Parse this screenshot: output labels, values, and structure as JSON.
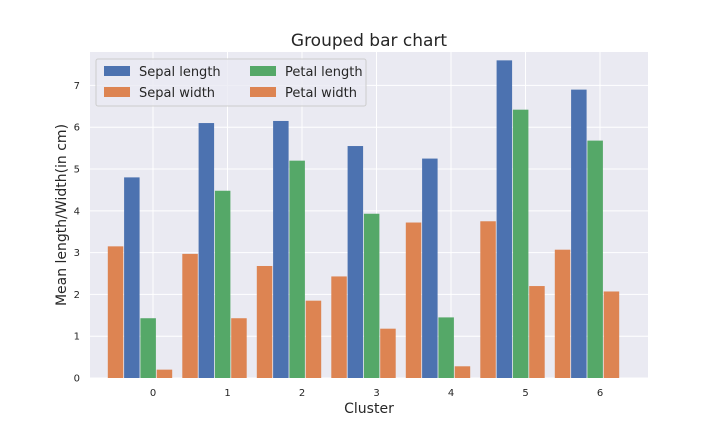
{
  "chart_data": {
    "type": "bar",
    "title": "Grouped bar chart",
    "xlabel": "Cluster",
    "ylabel": "Mean length/Width(in cm)",
    "categories": [
      "0",
      "1",
      "2",
      "3",
      "4",
      "5",
      "6"
    ],
    "ylim": [
      0,
      7.8
    ],
    "yticks": [
      0,
      1,
      2,
      3,
      4,
      5,
      6,
      7
    ],
    "grid": true,
    "legend_position": "top-left",
    "legend_columns": 2,
    "series": [
      {
        "name": "Sepal length",
        "color": "#4c72b0",
        "values": [
          4.8,
          6.1,
          6.15,
          5.55,
          5.25,
          7.6,
          6.9
        ]
      },
      {
        "name": "Sepal width",
        "color": "#dd8452",
        "values": [
          3.15,
          2.97,
          2.68,
          2.43,
          3.72,
          3.75,
          3.07
        ]
      },
      {
        "name": "Petal length",
        "color": "#55a868",
        "values": [
          1.43,
          4.48,
          5.2,
          3.93,
          1.45,
          6.42,
          5.68
        ]
      },
      {
        "name": "Petal width",
        "color": "#dd8452",
        "values": [
          0.2,
          1.43,
          1.85,
          1.18,
          0.28,
          2.2,
          2.07
        ]
      }
    ],
    "bar_order": [
      "Sepal width",
      "Sepal length",
      "Petal length",
      "Petal width"
    ]
  },
  "colors": {
    "plot_background": "#eaeaf2",
    "grid": "#ffffff"
  }
}
